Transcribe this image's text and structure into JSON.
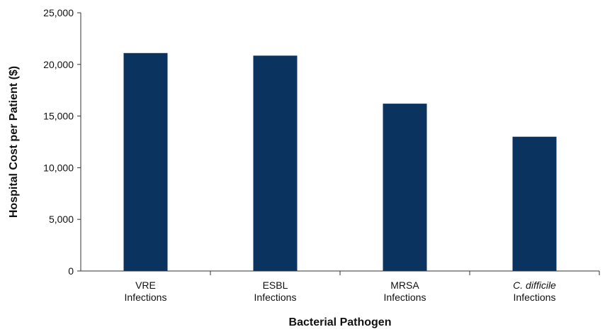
{
  "chart_data": {
    "type": "bar",
    "categories": [
      {
        "line1": "VRE",
        "line1_italic": false,
        "line2": "Infections"
      },
      {
        "line1": "ESBL",
        "line1_italic": false,
        "line2": "Infections"
      },
      {
        "line1": "MRSA",
        "line1_italic": false,
        "line2": "Infections"
      },
      {
        "line1": "C. difficile",
        "line1_italic": true,
        "line2": "Infections"
      }
    ],
    "values": [
      21100,
      20850,
      16200,
      13000
    ],
    "xlabel": "Bacterial Pathogen",
    "ylabel": "Hospital Cost per Patient ($)",
    "ylim": [
      0,
      25000
    ],
    "yticks": [
      0,
      5000,
      10000,
      15000,
      20000,
      25000
    ],
    "ytick_labels": [
      "0",
      "5,000",
      "10,000",
      "15,000",
      "20,000",
      "25,000"
    ],
    "grid": false,
    "legend": "none",
    "bar_color": "#0b3360",
    "axis_color": "#333333"
  }
}
